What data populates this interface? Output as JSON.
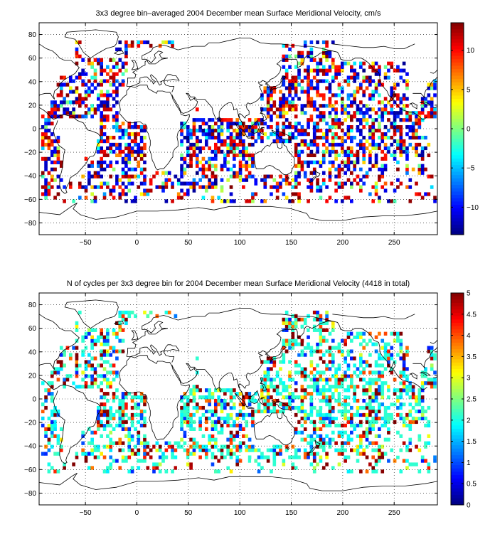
{
  "chart_data": [
    {
      "type": "heatmap",
      "title": "3x3 degree bin–averaged 2004 December mean Surface Meridional Velocity, cm/s",
      "xlabel": "",
      "ylabel": "",
      "xlim": [
        -95,
        292
      ],
      "ylim": [
        -90,
        90
      ],
      "x_ticks": [
        -50,
        0,
        50,
        100,
        150,
        200,
        250
      ],
      "y_ticks": [
        80,
        60,
        40,
        20,
        0,
        -20,
        -40,
        -60,
        -80
      ],
      "grid": true,
      "grid_style": "dotted",
      "bin_size_deg": 3,
      "colormap": "jet",
      "colorbar": {
        "range": [
          -13.5,
          13.5
        ],
        "ticks": [
          10,
          5,
          0,
          -5,
          -10
        ],
        "placement": "right"
      }
    },
    {
      "type": "heatmap",
      "title": "N of cycles per 3x3 degree bin for 2004 December mean Surface Meridional Velocity (4418 in total)",
      "xlabel": "",
      "ylabel": "",
      "xlim": [
        -95,
        292
      ],
      "ylim": [
        -90,
        90
      ],
      "x_ticks": [
        -50,
        0,
        50,
        100,
        150,
        200,
        250
      ],
      "y_ticks": [
        80,
        60,
        40,
        20,
        0,
        -20,
        -40,
        -60,
        -80
      ],
      "grid": true,
      "grid_style": "dotted",
      "bin_size_deg": 3,
      "total_cycles": 4418,
      "colormap": "jet",
      "colorbar": {
        "range": [
          0,
          5
        ],
        "ticks": [
          5,
          4.5,
          4,
          3.5,
          3,
          2.5,
          2,
          1.5,
          1,
          0.5,
          0
        ],
        "placement": "right"
      }
    }
  ]
}
